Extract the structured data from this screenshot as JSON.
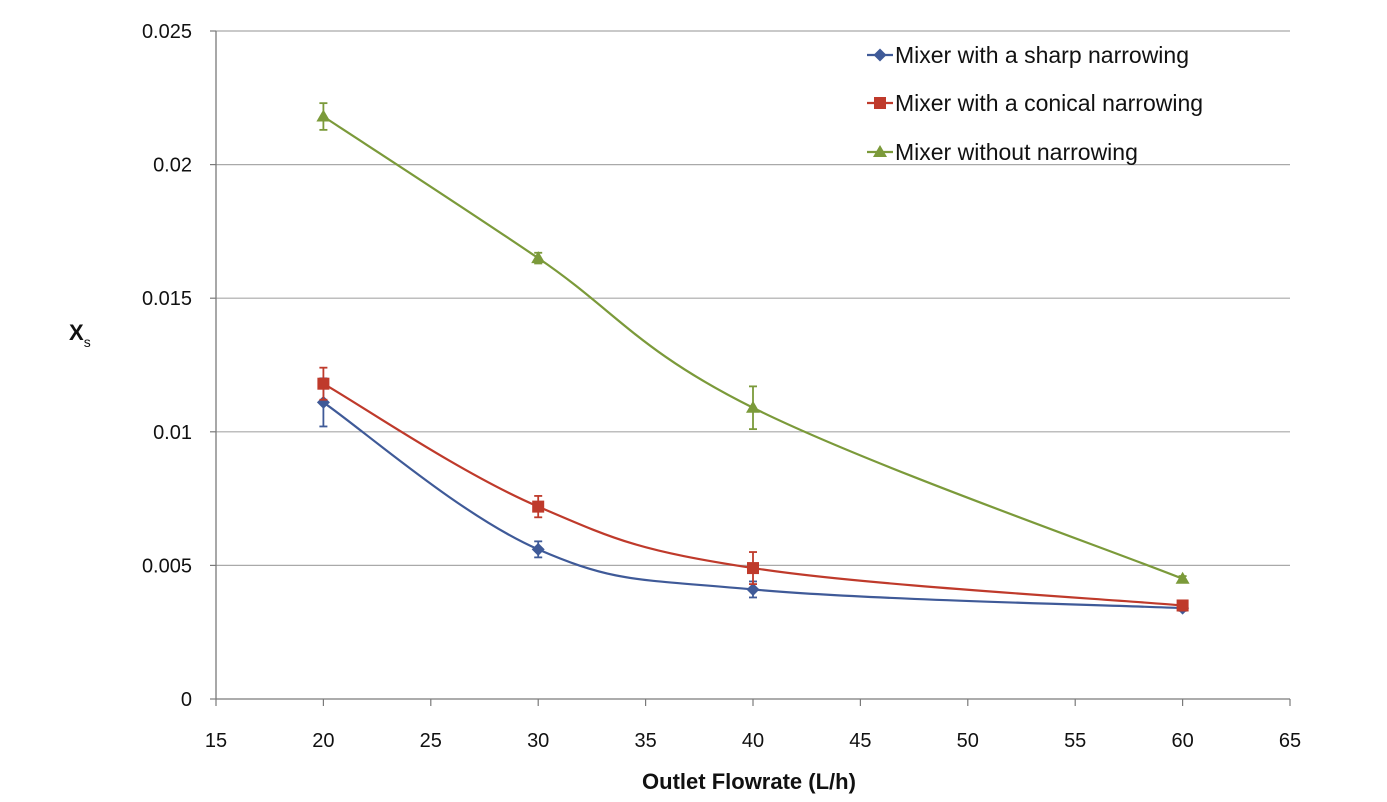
{
  "chart_data": {
    "type": "line",
    "title": "",
    "xlabel": "Outlet Flowrate (L/h)",
    "ylabel": {
      "main": "X",
      "subscript": "s"
    },
    "xlim": [
      15,
      65
    ],
    "ylim": [
      0,
      0.025
    ],
    "x_ticks": [
      "15",
      "20",
      "25",
      "30",
      "35",
      "40",
      "45",
      "50",
      "55",
      "60",
      "65"
    ],
    "y_ticks": [
      "0",
      "0.005",
      "0.01",
      "0.015",
      "0.02",
      "0.025"
    ],
    "grid": "horizontal",
    "legend_position": "top-right",
    "x": [
      20,
      30,
      40,
      60
    ],
    "series": [
      {
        "name": "Mixer with a sharp narrowing",
        "color": "#3f5a98",
        "marker": "diamond",
        "values": [
          0.0111,
          0.0056,
          0.0041,
          0.0034
        ],
        "error": [
          0.0009,
          0.0003,
          0.0003,
          0.0001
        ]
      },
      {
        "name": "Mixer with a conical narrowing",
        "color": "#bf3a2b",
        "marker": "square",
        "values": [
          0.0118,
          0.0072,
          0.0049,
          0.0035
        ],
        "error": [
          0.0006,
          0.0004,
          0.0006,
          0.0001
        ]
      },
      {
        "name": "Mixer without narrowing",
        "color": "#7b9a3a",
        "marker": "triangle",
        "values": [
          0.0218,
          0.0165,
          0.0109,
          0.0045
        ],
        "error": [
          0.0005,
          0.0002,
          0.0008,
          0.0001
        ]
      }
    ]
  }
}
